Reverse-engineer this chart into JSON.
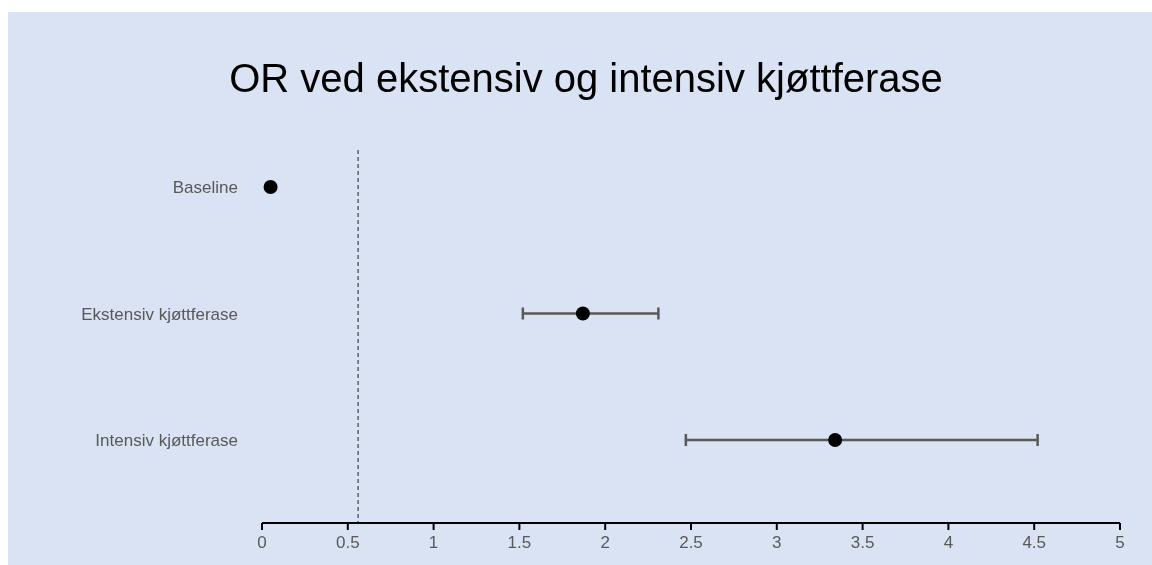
{
  "chart_data": {
    "type": "scatter",
    "orientation": "horizontal",
    "title": "OR ved ekstensiv og intensiv kjøttferase",
    "categories": [
      "Baseline",
      "Ekstensiv kjøttferase",
      "Intensiv kjøttferase"
    ],
    "values": [
      0.05,
      1.87,
      3.34
    ],
    "errors": [
      null,
      [
        1.52,
        2.31
      ],
      [
        2.47,
        4.52
      ]
    ],
    "color": "#000000",
    "marker": "circle",
    "xlim": [
      0,
      5
    ],
    "xticks": [
      0,
      0.5,
      1,
      1.5,
      2,
      2.5,
      3,
      3.5,
      4,
      4.5,
      5
    ],
    "ref_lines": [
      {
        "axis": "x",
        "value": 0.56,
        "color": "#404040",
        "line_style": "dashed"
      }
    ],
    "grid": false
  }
}
